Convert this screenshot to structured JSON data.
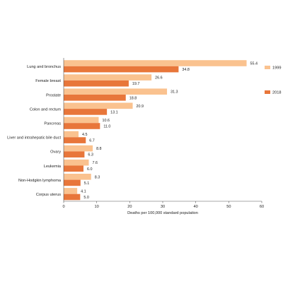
{
  "chart_data": {
    "type": "bar",
    "orientation": "horizontal",
    "categories": [
      "Lung and bronchus",
      "Female breast",
      "Prostate",
      "Colon and rectum",
      "Pancreas",
      "Liver and intrahepatic bile duct",
      "Ovary",
      "Leukemia",
      "Non-Hodgkin lymphoma",
      "Corpus uterus"
    ],
    "series": [
      {
        "name": "1999",
        "color": "#FAC28F",
        "values": [
          55.4,
          26.6,
          31.3,
          20.9,
          10.6,
          4.5,
          8.8,
          7.6,
          8.3,
          4.1
        ]
      },
      {
        "name": "2018",
        "color": "#E8763A",
        "values": [
          34.8,
          19.7,
          18.8,
          13.1,
          11.0,
          6.7,
          6.3,
          6.0,
          5.1,
          5.0
        ]
      }
    ],
    "value_labels": [
      [
        "55.4",
        "26.6",
        "31.3",
        "20.9",
        "10.6",
        "4.5",
        "8.8",
        "7.6",
        "8.3",
        "4.1"
      ],
      [
        "34.8",
        "19.7",
        "18.8",
        "13.1",
        "11.0",
        "6.7",
        "6.3",
        "6.0",
        "5.1",
        "5.0"
      ]
    ],
    "xlabel": "Deaths per 100,000 standard population",
    "xlim": [
      0,
      60
    ],
    "xticks": [
      "0",
      "10",
      "20",
      "30",
      "40",
      "50",
      "60"
    ],
    "grid": false,
    "legend_position": "right"
  }
}
